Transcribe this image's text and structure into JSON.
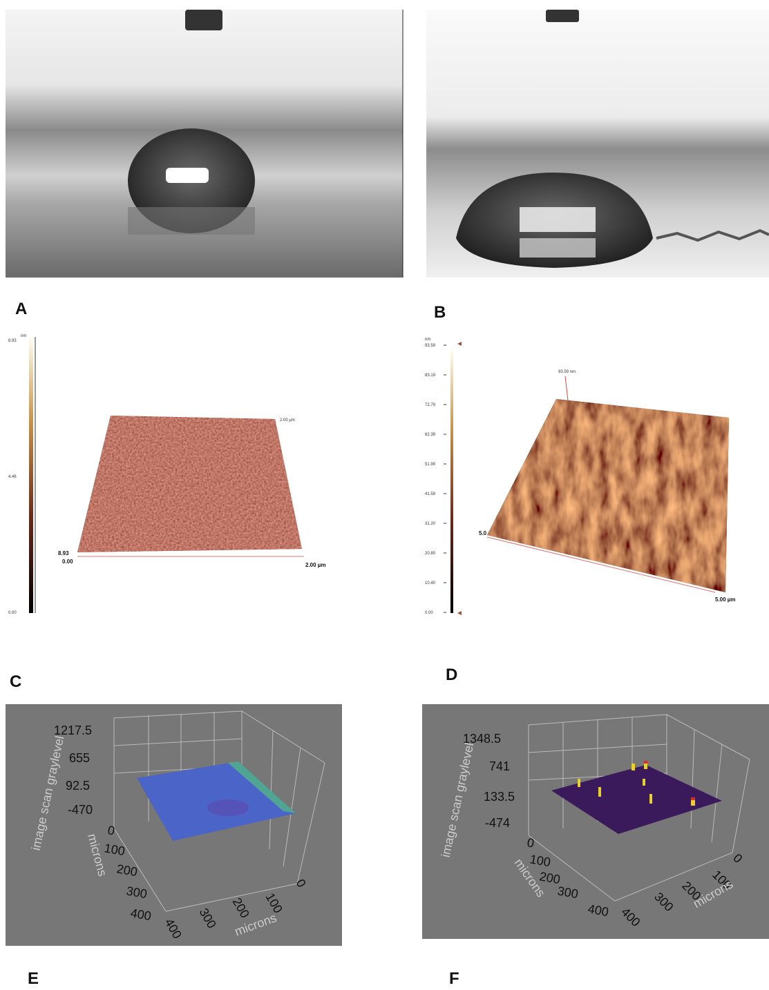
{
  "panels": {
    "a": {
      "label": "A"
    },
    "b": {
      "label": "B"
    },
    "c": {
      "label": "C",
      "colorbar": {
        "unit": "nm",
        "ticks": [
          "8.93",
          "4.46",
          "0.00"
        ]
      },
      "annotations": [
        "2.00 µm",
        "8.93",
        "0.00",
        "2.00 µm"
      ]
    },
    "d": {
      "label": "D",
      "colorbar": {
        "unit": "nm",
        "ticks": [
          "93.59",
          "83.19",
          "72.79",
          "62.39",
          "51.99",
          "41.59",
          "31.20",
          "20.80",
          "10.40",
          "0.00"
        ]
      },
      "annotations": [
        "93.59 nm",
        "5.0",
        "5.00 µm"
      ]
    },
    "e": {
      "label": "E",
      "z_axis": {
        "title": "image scan graylevel",
        "ticks": [
          "1217.5",
          "655",
          "92.5",
          "-470"
        ]
      },
      "y_axis": {
        "title": "microns",
        "ticks": [
          "0",
          "100",
          "200",
          "300",
          "400"
        ]
      },
      "x_axis": {
        "title": "microns",
        "ticks": [
          "400",
          "300",
          "200",
          "100",
          "0"
        ]
      }
    },
    "f": {
      "label": "F",
      "z_axis": {
        "title": "image scan graylevel",
        "ticks": [
          "1348.5",
          "741",
          "133.5",
          "-474"
        ]
      },
      "y_axis": {
        "title": "microns",
        "ticks": [
          "0",
          "100",
          "200",
          "300",
          "400"
        ]
      },
      "x_axis": {
        "title": "microns",
        "ticks": [
          "400",
          "300",
          "200",
          "100",
          "0"
        ]
      }
    }
  }
}
